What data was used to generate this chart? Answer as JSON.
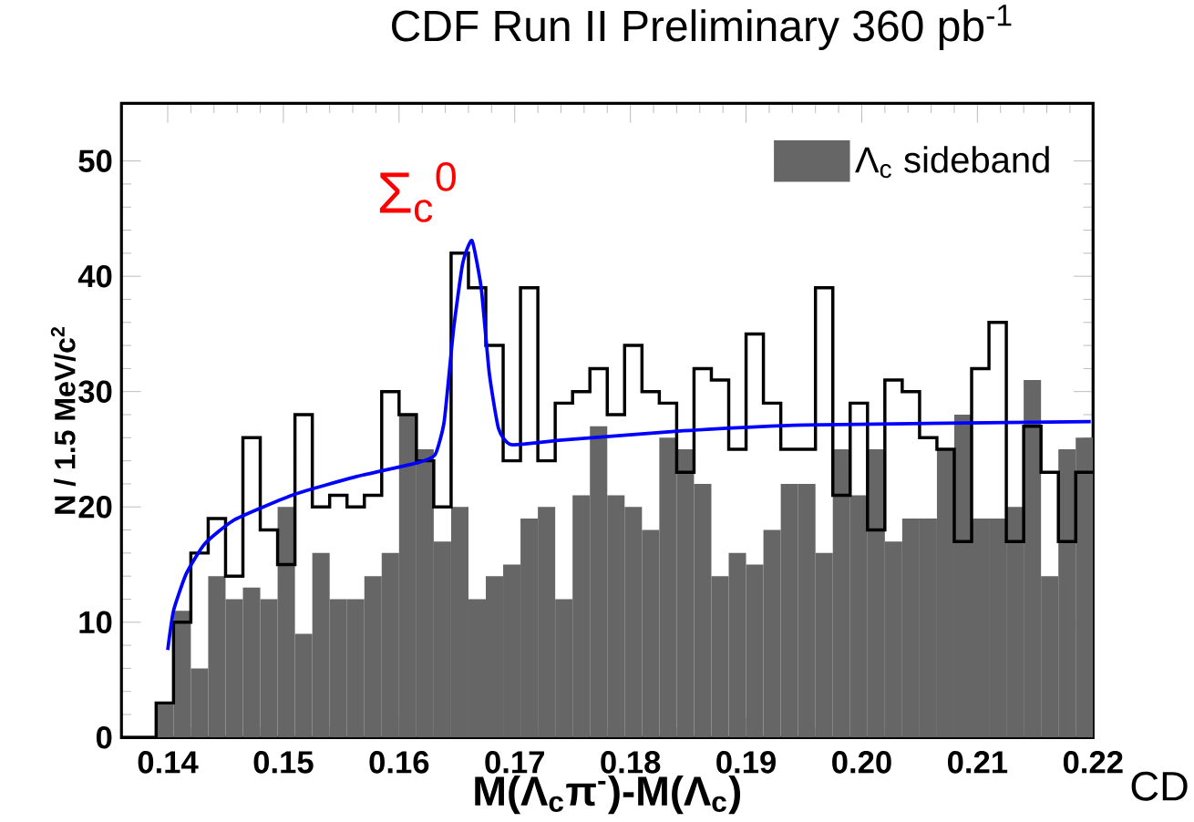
{
  "chart_data": {
    "type": "histogram",
    "title": "CDF Run II Preliminary 360 pb$^{-1}$",
    "xlabel": "M(Λ$_{c}$π$^{-}$)-M(Λ$_{c}$)",
    "ylabel": "N / 1.5 MeV/c$^{2}$",
    "bins": [
      0.136,
      0.1375,
      0.139,
      0.1405,
      0.142,
      0.1435,
      0.145,
      0.1465,
      0.148,
      0.1495,
      0.151,
      0.1525,
      0.154,
      0.1555,
      0.157,
      0.1585,
      0.16,
      0.1615,
      0.163,
      0.1645,
      0.166,
      0.1675,
      0.169,
      0.1705,
      0.172,
      0.1735,
      0.175,
      0.1765,
      0.178,
      0.1795,
      0.181,
      0.1825,
      0.184,
      0.1855,
      0.187,
      0.1885,
      0.19,
      0.1915,
      0.193,
      0.1945,
      0.196,
      0.1975,
      0.199,
      0.2005,
      0.202,
      0.2035,
      0.205,
      0.2065,
      0.208,
      0.2095,
      0.211,
      0.2125,
      0.214,
      0.2155,
      0.217,
      0.2185,
      0.22
    ],
    "series": [
      {
        "color": "#000000",
        "values": [
          0,
          0,
          3,
          10,
          16,
          19,
          14,
          26,
          18,
          15,
          28,
          20,
          21,
          20,
          21,
          30,
          28,
          24,
          20,
          42,
          39,
          34,
          24,
          39,
          24,
          29,
          30,
          32,
          28,
          34,
          30,
          29,
          23,
          32,
          31,
          25,
          35,
          29,
          25,
          25,
          39,
          21,
          29,
          18,
          31,
          30,
          26,
          25,
          17,
          32,
          36,
          17,
          27,
          23,
          17,
          23
        ]
      },
      {
        "name": "Λ$_{c}$ sideband",
        "color": "#666666",
        "values": [
          0,
          0,
          3,
          11,
          6,
          14,
          12,
          13,
          12,
          20,
          9,
          16,
          12,
          12,
          14,
          16,
          28,
          25,
          17,
          20,
          12,
          14,
          15,
          19,
          20,
          12,
          21,
          27,
          21,
          20,
          18,
          26,
          25,
          22,
          14,
          16,
          15,
          18,
          22,
          22,
          16,
          25,
          21,
          25,
          17,
          19,
          19,
          25,
          28,
          19,
          19,
          20,
          31,
          14,
          25,
          26
        ]
      },
      {
        "type": "line",
        "color": "#0000ff",
        "x": [
          0.14,
          0.1405,
          0.1416,
          0.1432,
          0.1458,
          0.151,
          0.1562,
          0.1615,
          0.1631,
          0.1639,
          0.1647,
          0.1655,
          0.1663,
          0.1671,
          0.1678,
          0.1686,
          0.1697,
          0.1741,
          0.1846,
          0.1951,
          0.2198
        ],
        "values": [
          7.6,
          11,
          14.2,
          16.8,
          18.9,
          21.1,
          22.6,
          23.8,
          24.5,
          27.4,
          35.3,
          41.1,
          43.1,
          39,
          31.6,
          26.8,
          25.4,
          25.8,
          26.6,
          27.1,
          27.4
        ]
      }
    ],
    "annotations": [
      {
        "text": "Σ$_{c}$$^{0}$",
        "x": 0.1663,
        "y": 43.1
      },
      "CD"
    ],
    "xlim": [
      0.136,
      0.22
    ],
    "ylim": [
      0,
      55
    ],
    "xticks": [
      0.14,
      0.15,
      0.16,
      0.17,
      0.18,
      0.19,
      {
        "value": 0.2,
        "label": "0.20"
      },
      0.21,
      0.22
    ],
    "yticks": [
      0,
      10,
      20,
      30,
      40,
      50
    ],
    "legend": "top right"
  }
}
